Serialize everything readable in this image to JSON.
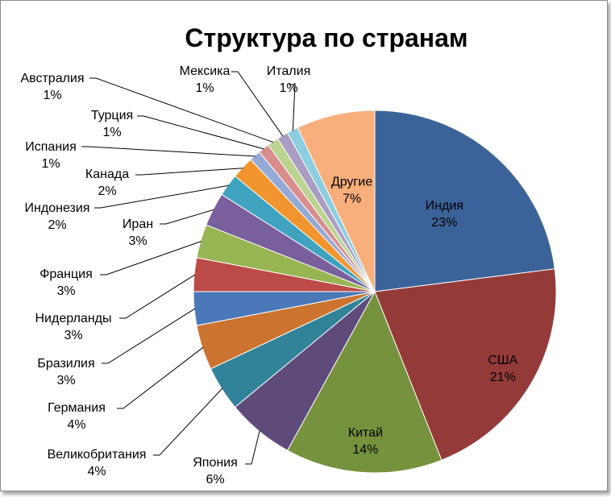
{
  "chart_data": {
    "type": "pie",
    "title": "Структура по странам",
    "slices": [
      {
        "label": "Индия",
        "value": 23,
        "value_label": "23%",
        "color": "#3C6399"
      },
      {
        "label": "США",
        "value": 21,
        "value_label": "21%",
        "color": "#943B39"
      },
      {
        "label": "Китай",
        "value": 14,
        "value_label": "14%",
        "color": "#77923C"
      },
      {
        "label": "Япония",
        "value": 6,
        "value_label": "6%",
        "color": "#5F4A7C"
      },
      {
        "label": "Великобритания",
        "value": 4,
        "value_label": "4%",
        "color": "#31839A"
      },
      {
        "label": "Германия",
        "value": 4,
        "value_label": "4%",
        "color": "#CC7330"
      },
      {
        "label": "Бразилия",
        "value": 3,
        "value_label": "3%",
        "color": "#4B78B8"
      },
      {
        "label": "Нидерланды",
        "value": 3,
        "value_label": "3%",
        "color": "#BC4A46"
      },
      {
        "label": "Франция",
        "value": 3,
        "value_label": "3%",
        "color": "#98B553"
      },
      {
        "label": "Иран",
        "value": 3,
        "value_label": "3%",
        "color": "#7A5F9D"
      },
      {
        "label": "Индонезия",
        "value": 2,
        "value_label": "2%",
        "color": "#3FA3BF"
      },
      {
        "label": "Канада",
        "value": 2,
        "value_label": "2%",
        "color": "#F2952E"
      },
      {
        "label": "Испания",
        "value": 1,
        "value_label": "1%",
        "color": "#94A9D6"
      },
      {
        "label": "Турция",
        "value": 1,
        "value_label": "1%",
        "color": "#D98E8D"
      },
      {
        "label": "Австралия",
        "value": 1,
        "value_label": "1%",
        "color": "#BBD491"
      },
      {
        "label": "Мексика",
        "value": 1,
        "value_label": "1%",
        "color": "#AA9CC2"
      },
      {
        "label": "Италия",
        "value": 1,
        "value_label": "1%",
        "color": "#8DCDE0"
      },
      {
        "label": "Другие",
        "value": 7,
        "value_label": "7%",
        "color": "#F8AF7B"
      }
    ],
    "legend": "none",
    "start_angle": "top",
    "direction": "clockwise"
  }
}
